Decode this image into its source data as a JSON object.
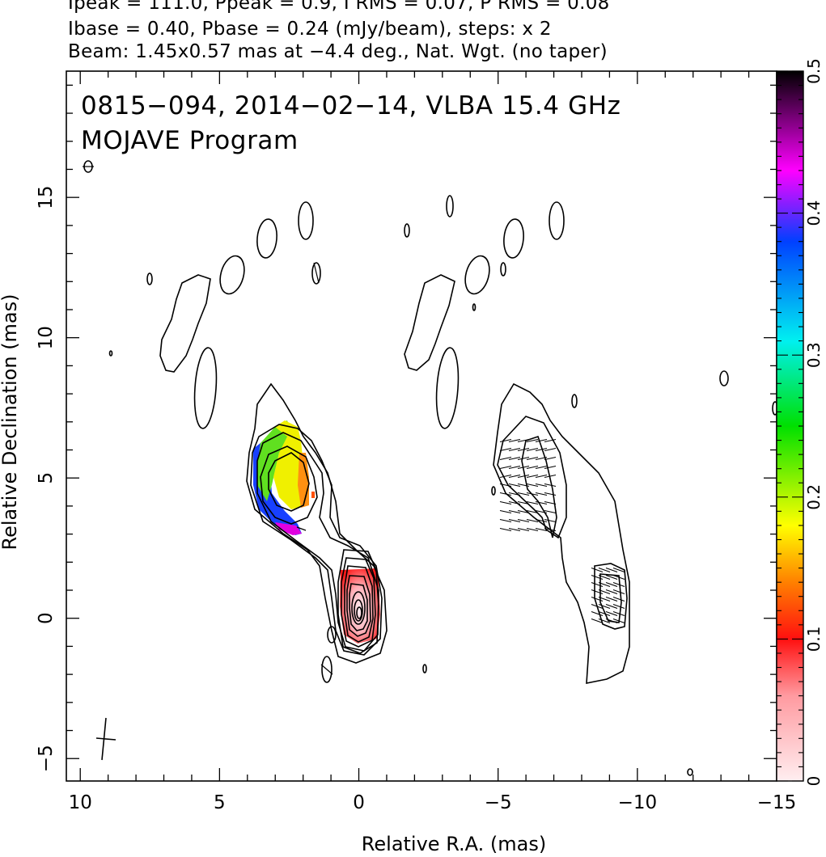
{
  "header": {
    "line1": "Ipeak = 111.0, Ppeak = 0.9, I RMS = 0.07, P RMS = 0.08",
    "line2": "Ibase = 0.40, Pbase = 0.24 (mJy/beam), steps: x 2",
    "line3": "Beam: 1.45x0.57 mas at −4.4 deg., Nat. Wgt. (no taper)"
  },
  "plot": {
    "title": "0815−094, 2014−02−14, VLBA 15.4 GHz",
    "subtitle": "MOJAVE Program"
  },
  "chart_data": {
    "type": "heatmap",
    "title": "0815−094, 2014−02−14, VLBA 15.4 GHz",
    "subtitle": "MOJAVE Program",
    "xlabel": "Relative R.A. (mas)",
    "ylabel": "Relative Declination (mas)",
    "xlim": [
      10.5,
      -15
    ],
    "ylim": [
      -5.8,
      19.5
    ],
    "x_ticks": [
      10,
      5,
      0,
      -5,
      -10,
      -15
    ],
    "x_tick_labels": [
      "10",
      "5",
      "0",
      "−5",
      "−10",
      "−15"
    ],
    "y_ticks": [
      -5,
      0,
      5,
      10,
      15
    ],
    "y_tick_labels": [
      "−5",
      "0",
      "5",
      "10",
      "15"
    ],
    "colorbar": {
      "range": [
        0,
        0.5
      ],
      "ticks": [
        0,
        0.1,
        0.2,
        0.3,
        0.4,
        0.5
      ],
      "tick_labels": [
        "0",
        "0.1",
        "0.2",
        "0.3",
        "0.4",
        "0.5"
      ],
      "colors": [
        "#ffeef0",
        "#ff2020",
        "#ff8c00",
        "#ffff00",
        "#00e000",
        "#00f0f0",
        "#0040ff",
        "#ff00ff",
        "#800080",
        "#000000"
      ]
    },
    "panels": [
      {
        "name": "left",
        "x_offset": 0,
        "content": "total intensity contours with fractional polarization color map"
      },
      {
        "name": "right",
        "x_offset": -10,
        "content": "total intensity base contour with EVPA ticks"
      }
    ],
    "contour_levels_mJy_per_beam": [
      0.4,
      0.8,
      1.6,
      3.2,
      6.4,
      12.8,
      25.6,
      51.2,
      102.4
    ],
    "peak_intensity_mJy_per_beam": 111.0,
    "core_position": [
      0,
      0
    ],
    "beam": {
      "major_mas": 1.45,
      "minor_mas": 0.57,
      "pa_deg": -4.4,
      "position": [
        9,
        -4.4
      ]
    }
  }
}
